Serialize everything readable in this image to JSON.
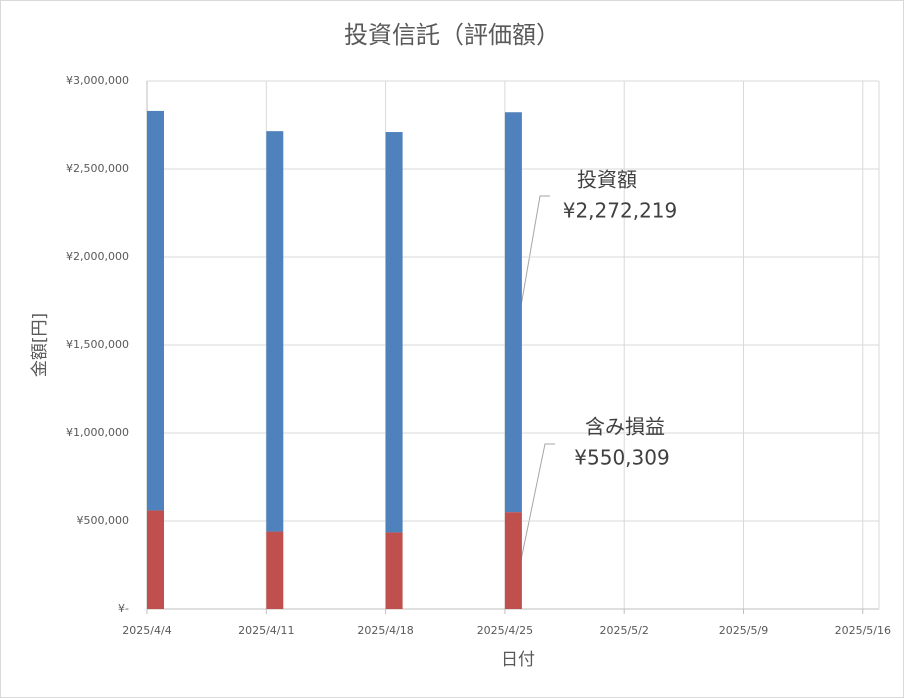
{
  "chart_data": {
    "type": "stacked_bar",
    "title": "投資信託（評価額）",
    "x_label": "日付",
    "y_label": "金額[円]",
    "categories": [
      "2025/4/4",
      "2025/4/11",
      "2025/4/18",
      "2025/4/25",
      "2025/5/2",
      "2025/5/9",
      "2025/5/16"
    ],
    "series": [
      {
        "name": "含み損益",
        "color": "#c0504d",
        "values": [
          560000,
          440000,
          435000,
          550309,
          null,
          null,
          null
        ],
        "value_labels": [
          null,
          null,
          null,
          "¥550,309",
          null,
          null,
          null
        ]
      },
      {
        "name": "投資額",
        "color": "#4f81bd",
        "values": [
          2270000,
          2275000,
          2275000,
          2272219,
          null,
          null,
          null
        ],
        "value_labels": [
          null,
          null,
          null,
          "¥2,272,219",
          null,
          null,
          null
        ]
      }
    ],
    "ylim": [
      0,
      3000000
    ],
    "yticks": [
      {
        "value": 0,
        "label": "¥-"
      },
      {
        "value": 500000,
        "label": "¥500,000"
      },
      {
        "value": 1000000,
        "label": "¥1,000,000"
      },
      {
        "value": 1500000,
        "label": "¥1,500,000"
      },
      {
        "value": 2000000,
        "label": "¥2,000,000"
      },
      {
        "value": 2500000,
        "label": "¥2,500,000"
      },
      {
        "value": 3000000,
        "label": "¥3,000,000"
      }
    ],
    "grid": true
  }
}
